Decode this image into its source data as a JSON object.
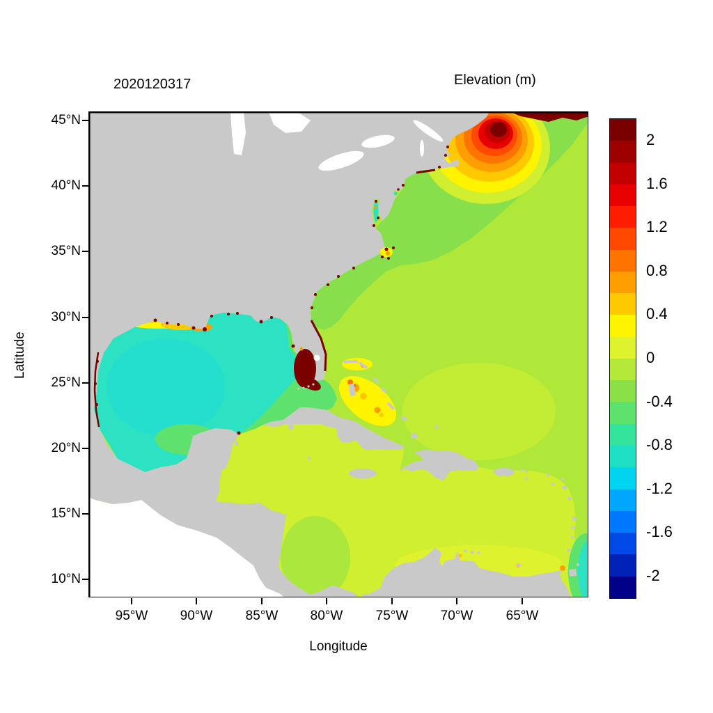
{
  "figure": {
    "date_label": "2020120317",
    "colorbar_title": "Elevation (m)",
    "axes": {
      "xlabel": "Longitude",
      "ylabel": "Latitude",
      "x_ticks": [
        "95°W",
        "90°W",
        "85°W",
        "80°W",
        "75°W",
        "70°W",
        "65°W"
      ],
      "y_ticks": [
        "45°N",
        "40°N",
        "35°N",
        "30°N",
        "25°N",
        "20°N",
        "15°N",
        "10°N"
      ]
    },
    "colorbar": {
      "tick_labels": [
        "2",
        "1.6",
        "1.2",
        "0.8",
        "0.4",
        "0",
        "-0.4",
        "-0.8",
        "-1.2",
        "-1.6",
        "-2"
      ],
      "range_min": -2.2,
      "range_max": 2.2,
      "level_step": 0.2,
      "colors_top_to_bottom": [
        "#7a0000",
        "#9e0000",
        "#c30000",
        "#e80000",
        "#ff1c00",
        "#ff4800",
        "#ff7300",
        "#ff9e00",
        "#ffc900",
        "#fff400",
        "#dff22e",
        "#b4e93a",
        "#8ae046",
        "#5fe26d",
        "#35e49c",
        "#1fe0c4",
        "#00d4ee",
        "#00a6ff",
        "#0077ff",
        "#0049e6",
        "#0022b8",
        "#000089"
      ]
    },
    "map_colors": {
      "land": "#c9c9c9",
      "lake": "#ffffff",
      "water_outside": "#ffffff",
      "atlantic": "#b0e83a",
      "atlantic_nw": "#86df4b",
      "atlantic_soft": "#c3ec34",
      "caribbean": "#cfef30",
      "caribbean_south": "#dff22e",
      "caribbean_west": "#abe73c",
      "gulf": "#2ce2c2",
      "gulf_core": "#25dfce",
      "shelf_green": "#5fe26d",
      "teal": "#35e49c",
      "surge_yellow": "#fff400",
      "surge_amber": "#ffc900",
      "surge_orange": "#ff9e00",
      "surge_deep_orange": "#ff7300",
      "surge_red_orange": "#ff4800",
      "surge_red": "#e80000",
      "surge_dark_red": "#c30000",
      "surge_maroon": "#7a0000"
    }
  },
  "chart_data": {
    "type": "heatmap",
    "title": "Elevation (m)",
    "timestamp_label": "2020120317",
    "xlabel": "Longitude",
    "ylabel": "Latitude",
    "x_ticks": [
      "95°W",
      "90°W",
      "85°W",
      "80°W",
      "75°W",
      "70°W",
      "65°W"
    ],
    "y_ticks": [
      "45°N",
      "40°N",
      "35°N",
      "30°N",
      "25°N",
      "20°N",
      "15°N",
      "10°N"
    ],
    "lon_range_approx": [
      "98°W",
      "60°W"
    ],
    "lat_range_approx": [
      "9°N",
      "46°N"
    ],
    "grid": false,
    "legend_position": "right-colorbar",
    "colorbar": {
      "label": "Elevation (m)",
      "tick_values": [
        2,
        1.6,
        1.2,
        0.8,
        0.4,
        0,
        -0.4,
        -0.8,
        -1.2,
        -1.6,
        -2
      ],
      "range": [
        -2.2,
        2.2
      ],
      "n_levels": 22,
      "palette": "blue-cyan-green-yellow-orange-red (jet-like)"
    },
    "land_mask": "gray = land, white = outside model domain (Pacific side)",
    "regions": [
      {
        "area": "Bay of Fundy / Gulf of Maine",
        "elevation_m": "1.2 to >2",
        "pattern": "concentric bullseye, dark red core at top edge"
      },
      {
        "area": "Nova Scotia coastal strip (top right)",
        "elevation_m": ">2",
        "pattern": "thin dark red band"
      },
      {
        "area": "Southwest Florida / Florida Bay coast",
        "elevation_m": ">2",
        "pattern": "solid dark red coastal blob"
      },
      {
        "area": "Florida east coast fringe",
        "elevation_m": ">2",
        "pattern": "thin dark red line"
      },
      {
        "area": "Louisiana-Mississippi coast",
        "elevation_m": "0.4 to 1.2",
        "pattern": "yellow-orange patches with red specks"
      },
      {
        "area": "Texas coast fringe",
        "elevation_m": ">2",
        "pattern": "dark red specks along barrier islands"
      },
      {
        "area": "Mid-Atlantic bays (Chesapeake, Delaware, Pamlico)",
        "elevation_m": "-0.6 to 1.0",
        "pattern": "mixed cyan, yellow and red specks"
      },
      {
        "area": "Bahamas banks",
        "elevation_m": "0.4 to 1.0",
        "pattern": "yellow patch with orange spots"
      },
      {
        "area": "Open Atlantic",
        "elevation_m": 0.3
      },
      {
        "area": "Northwest Atlantic shelf (Hatteras to Maine and NE corner)",
        "elevation_m": 0.1
      },
      {
        "area": "Gulf of Mexico interior",
        "elevation_m": -0.5
      },
      {
        "area": "Eastern Gulf shelf / Florida Straits / Yucatan Channel",
        "elevation_m": -0.2
      },
      {
        "area": "Caribbean Sea",
        "elevation_m": 0.35
      },
      {
        "area": "Southern Caribbean (Venezuela coast)",
        "elevation_m": 0.45
      },
      {
        "area": "Atlantic at far southeast edge",
        "elevation_m": -0.5,
        "pattern": "small cyan patch at right border"
      }
    ]
  }
}
